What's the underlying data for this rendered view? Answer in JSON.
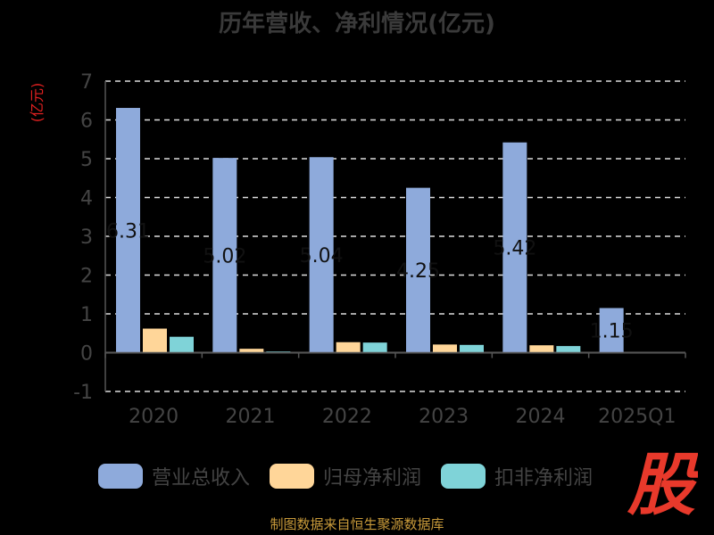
{
  "chart_data": {
    "type": "bar",
    "title": "历年营收、净利情况(亿元)",
    "ylabel": "(亿元)",
    "categories": [
      "2020",
      "2021",
      "2022",
      "2023",
      "2024",
      "2025Q1"
    ],
    "yticks": [
      "7",
      "6",
      "5",
      "4",
      "3",
      "2",
      "1",
      "0",
      "-1"
    ],
    "ylim": [
      -1,
      7
    ],
    "grid": true,
    "legend_position": "bottom",
    "series": [
      {
        "name": "营业总收入",
        "color": "#8eaadb",
        "values": [
          6.31,
          5.02,
          5.04,
          4.25,
          5.42,
          1.15
        ]
      },
      {
        "name": "归母净利润",
        "color": "#ffd699",
        "values": [
          0.62,
          0.1,
          0.27,
          0.21,
          0.19,
          null
        ]
      },
      {
        "name": "扣非净利润",
        "color": "#7fd3d8",
        "values": [
          0.41,
          0.03,
          0.26,
          0.2,
          0.17,
          null
        ]
      }
    ],
    "data_labels": [
      "6.31",
      "5.02",
      "5.04",
      "4.25",
      "5.42",
      "1.15"
    ]
  },
  "source": "制图数据来自恒生聚源数据库",
  "logo_text": "股"
}
